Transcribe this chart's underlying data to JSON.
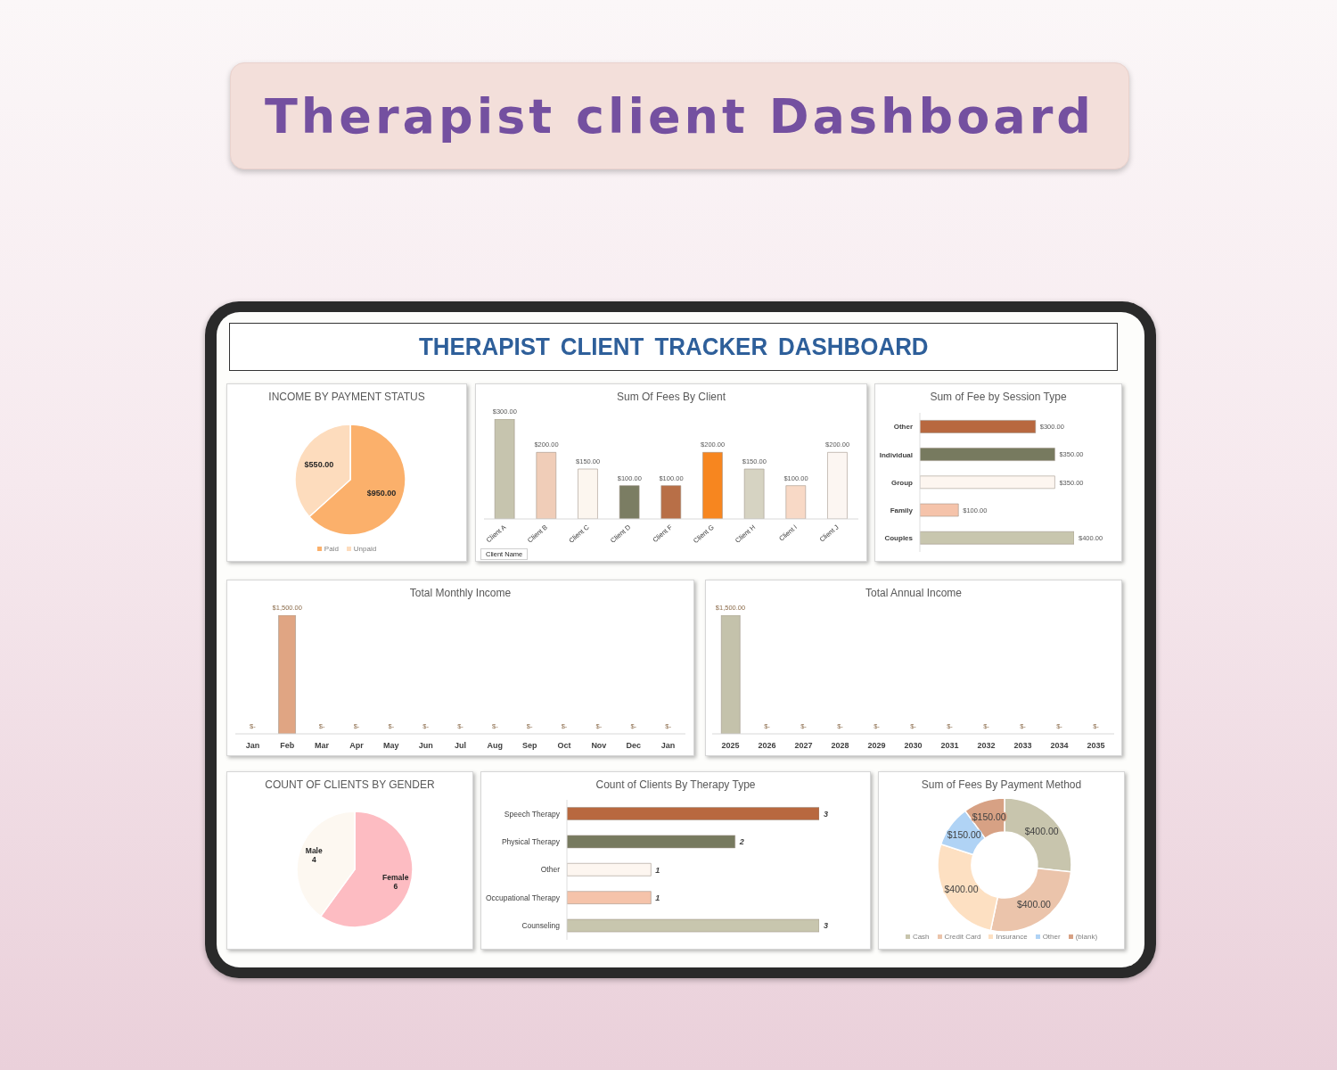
{
  "chart_data": [
    {
      "type": "other",
      "title": "Therapist client Dashboard",
      "subtitle": "THERAPIST CLIENT TRACKER DASHBOARD"
    },
    {
      "type": "pie",
      "title": "INCOME BY PAYMENT STATUS",
      "categories": [
        "Paid",
        "Unpaid"
      ],
      "values": [
        950,
        550
      ],
      "colors": [
        "#fbb06b",
        "#fddcbd"
      ],
      "value_labels": [
        "$950.00",
        "$550.00"
      ],
      "legend": "bottom"
    },
    {
      "type": "bar",
      "title": "Sum Of Fees By Client",
      "categories": [
        "Client A",
        "Client B",
        "Client C",
        "Client D",
        "Client F",
        "Client G",
        "Client H",
        "Client I",
        "Client J"
      ],
      "values": [
        300,
        200,
        150,
        100,
        100,
        200,
        150,
        100,
        200
      ],
      "colors": [
        "#c6c4ae",
        "#f0cdb8",
        "#fcf6ef",
        "#7b7d63",
        "#b86f47",
        "#f7861f",
        "#d6d3c2",
        "#f8d9c6",
        "#fcf6f2"
      ],
      "value_labels": [
        "$300.00",
        "$200.00",
        "$150.00",
        "$100.00",
        "$100.00",
        "$200.00",
        "$150.00",
        "$100.00",
        "$200.00"
      ],
      "tick_labels": "x",
      "annotations": [
        "Client Name"
      ]
    },
    {
      "type": "bar",
      "orientation": "horizontal",
      "title": "Sum of Fee by Session Type",
      "categories": [
        "Other",
        "Individual",
        "Group",
        "Family",
        "Couples"
      ],
      "values": [
        300,
        350,
        350,
        100,
        400
      ],
      "colors": [
        "#b8683f",
        "#777a5f",
        "#fdf6f0",
        "#f5c3aa",
        "#c8c6ae"
      ],
      "value_labels": [
        "$300.00",
        "$350.00",
        "$350.00",
        "$100.00",
        "$400.00"
      ],
      "tick_labels": "y"
    },
    {
      "type": "bar",
      "title": "Total Monthly Income",
      "categories": [
        "Jan",
        "Feb",
        "Mar",
        "Apr",
        "May",
        "Jun",
        "Jul",
        "Aug",
        "Sep",
        "Oct",
        "Nov",
        "Dec",
        "Jan"
      ],
      "values": [
        0,
        1500,
        0,
        0,
        0,
        0,
        0,
        0,
        0,
        0,
        0,
        0,
        0
      ],
      "color": "#e0a583",
      "value_labels": [
        "$-",
        "$1,500.00",
        "$-",
        "$-",
        "$-",
        "$-",
        "$-",
        "$-",
        "$-",
        "$-",
        "$-",
        "$-",
        "$-"
      ],
      "tick_labels": "x"
    },
    {
      "type": "bar",
      "title": "Total Annual Income",
      "categories": [
        "2025",
        "2026",
        "2027",
        "2028",
        "2029",
        "2030",
        "2031",
        "2032",
        "2033",
        "2034",
        "2035"
      ],
      "values": [
        1500,
        0,
        0,
        0,
        0,
        0,
        0,
        0,
        0,
        0,
        0
      ],
      "color": "#c4c2ab",
      "value_labels": [
        "$1,500.00",
        "$-",
        "$-",
        "$-",
        "$-",
        "$-",
        "$-",
        "$-",
        "$-",
        "$-",
        "$-"
      ],
      "tick_labels": "x"
    },
    {
      "type": "pie",
      "title": "COUNT OF CLIENTS BY GENDER",
      "categories": [
        "Female",
        "Male"
      ],
      "values": [
        6,
        4
      ],
      "colors": [
        "#fdbcc2",
        "#fdf8f1"
      ],
      "data_labels": true
    },
    {
      "type": "bar",
      "orientation": "horizontal",
      "title": "Count of Clients By Therapy Type",
      "categories": [
        "Speech Therapy",
        "Physical Therapy",
        "Other",
        "Occupational Therapy",
        "Counseling"
      ],
      "values": [
        3,
        2,
        1,
        1,
        3
      ],
      "colors": [
        "#b8683f",
        "#777a5f",
        "#fdf6f0",
        "#f5c3aa",
        "#c8c6ae"
      ],
      "data_labels": true,
      "tick_labels": "y"
    },
    {
      "type": "donut",
      "title": "Sum of Fees By Payment Method",
      "categories": [
        "Cash",
        "Credit Card",
        "Insurance",
        "Other",
        "(blank)"
      ],
      "values": [
        400,
        400,
        400,
        150,
        150
      ],
      "colors": [
        "#c8c5ad",
        "#ebc4ab",
        "#fde0c2",
        "#b0d3f5",
        "#d7a184"
      ],
      "value_labels": [
        "$400.00",
        "$400.00",
        "$400.00",
        "$150.00",
        "$150.00"
      ],
      "legend": "bottom"
    }
  ]
}
